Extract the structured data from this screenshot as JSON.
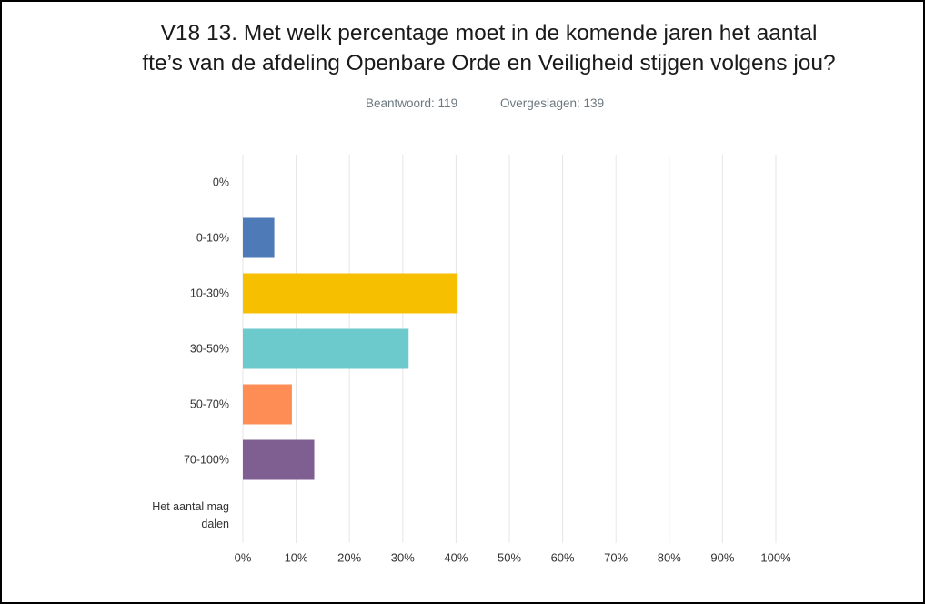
{
  "chart_data": {
    "type": "barh",
    "title": "V18 13. Met welk percentage moet in de komende jaren het aantal fte’s van de afdeling Openbare Orde en Veiligheid stijgen volgens jou?",
    "subtitle": [
      "Beantwoord: 119",
      "Overgeslagen: 139"
    ],
    "categories": [
      "0%",
      "0-10%",
      "10-30%",
      "30-50%",
      "50-70%",
      "70-100%",
      "Het aantal mag dalen"
    ],
    "values": [
      0,
      5.9,
      40.3,
      31.1,
      9.2,
      13.4,
      0
    ],
    "colors": [
      "#4f7ab8",
      "#4f7ab8",
      "#f6bf00",
      "#6ccacc",
      "#fd8c55",
      "#7f5f92",
      "#4f7ab8"
    ],
    "xlim": [
      0,
      100
    ],
    "xticks": [
      {
        "value": 0,
        "label": "0%"
      },
      {
        "value": 10,
        "label": "10%"
      },
      {
        "value": 20,
        "label": "20%"
      },
      {
        "value": 30,
        "label": "30%"
      },
      {
        "value": 40,
        "label": "40%"
      },
      {
        "value": 50,
        "label": "50%"
      },
      {
        "value": 60,
        "label": "60%"
      },
      {
        "value": 70,
        "label": "70%"
      },
      {
        "value": 80,
        "label": "80%"
      },
      {
        "value": 90,
        "label": "90%"
      },
      {
        "value": 100,
        "label": "100%"
      }
    ],
    "grid": true
  }
}
